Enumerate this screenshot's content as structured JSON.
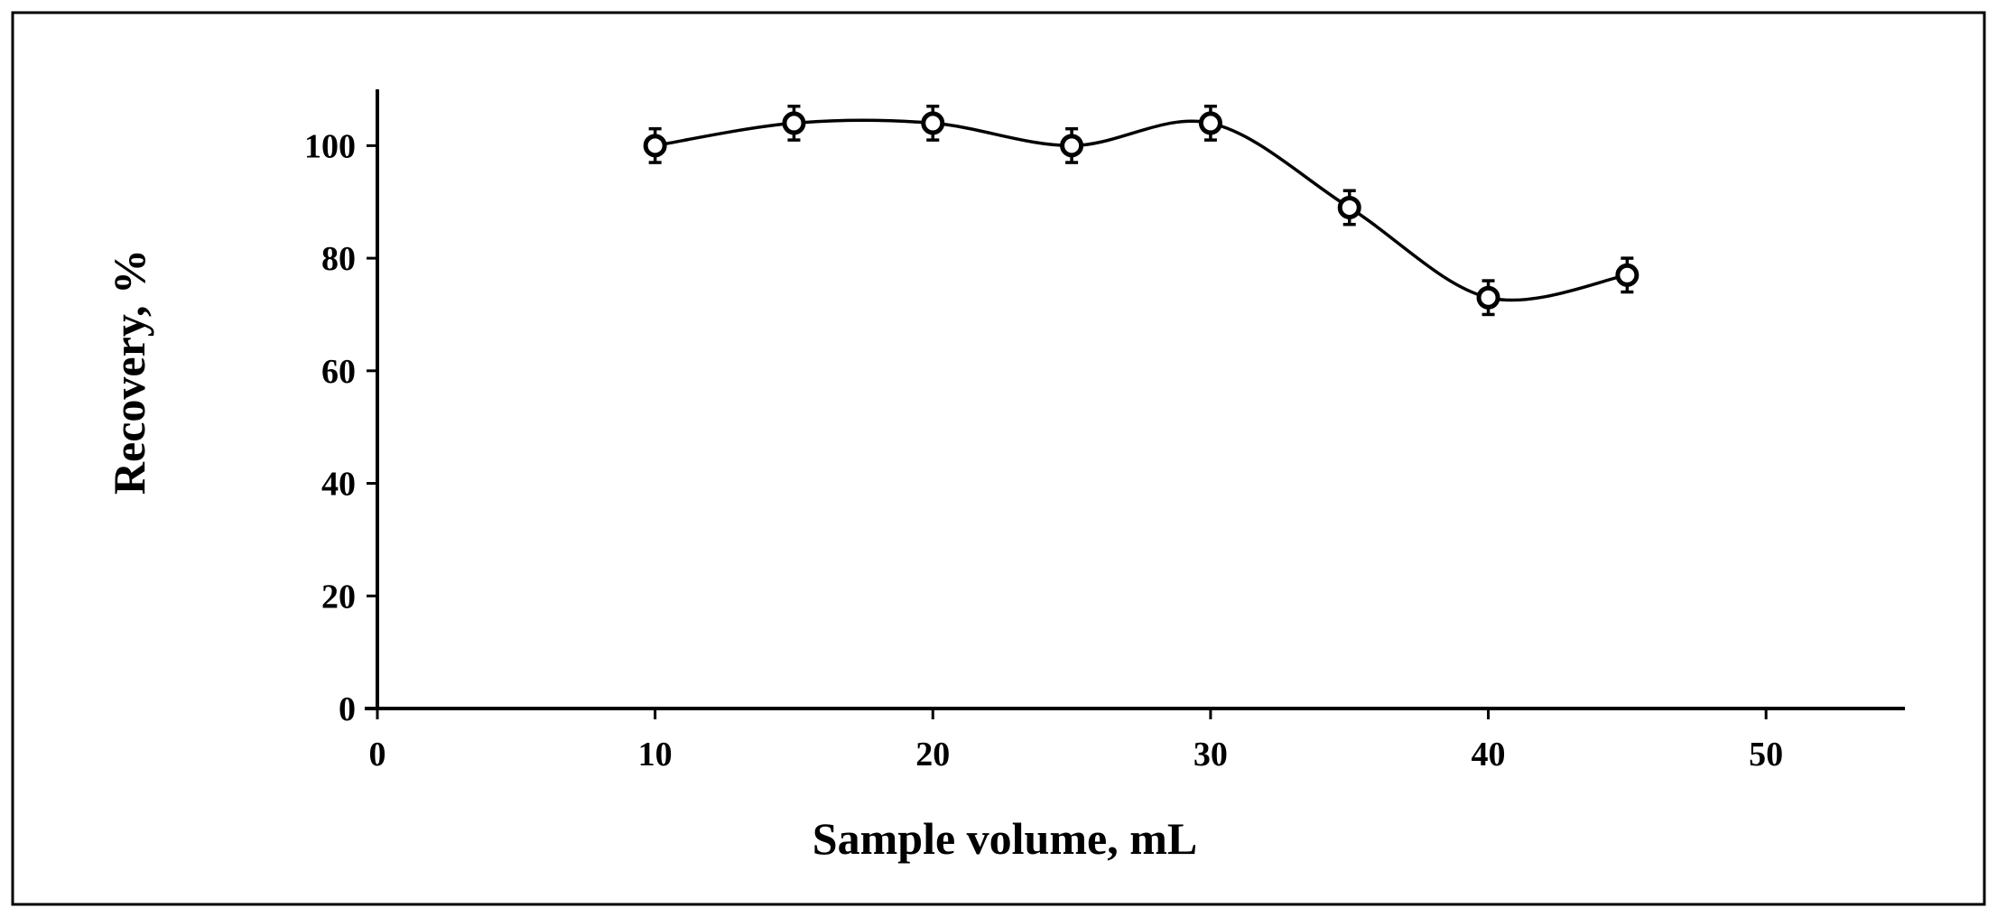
{
  "chart_data": {
    "type": "line",
    "xlabel": "Sample volume, mL",
    "ylabel": "Recovery, %",
    "xlim": [
      0,
      55
    ],
    "ylim": [
      0,
      110
    ],
    "x_ticks": [
      0,
      10,
      20,
      30,
      40,
      50
    ],
    "y_ticks": [
      0,
      20,
      40,
      60,
      80,
      100
    ],
    "x_tick_labels": [
      "0",
      "10",
      "20",
      "30",
      "40",
      "50"
    ],
    "y_tick_labels": [
      "0",
      "20",
      "40",
      "60",
      "80",
      "100"
    ],
    "grid": false,
    "smooth": true,
    "marker": "open-circle",
    "series": [
      {
        "x": [
          10,
          15,
          20,
          25,
          30,
          35,
          40,
          45
        ],
        "values": [
          100,
          104,
          104,
          100,
          104,
          89,
          73,
          77
        ],
        "error": [
          3,
          3,
          3,
          3,
          3,
          3,
          3,
          3
        ]
      }
    ]
  }
}
